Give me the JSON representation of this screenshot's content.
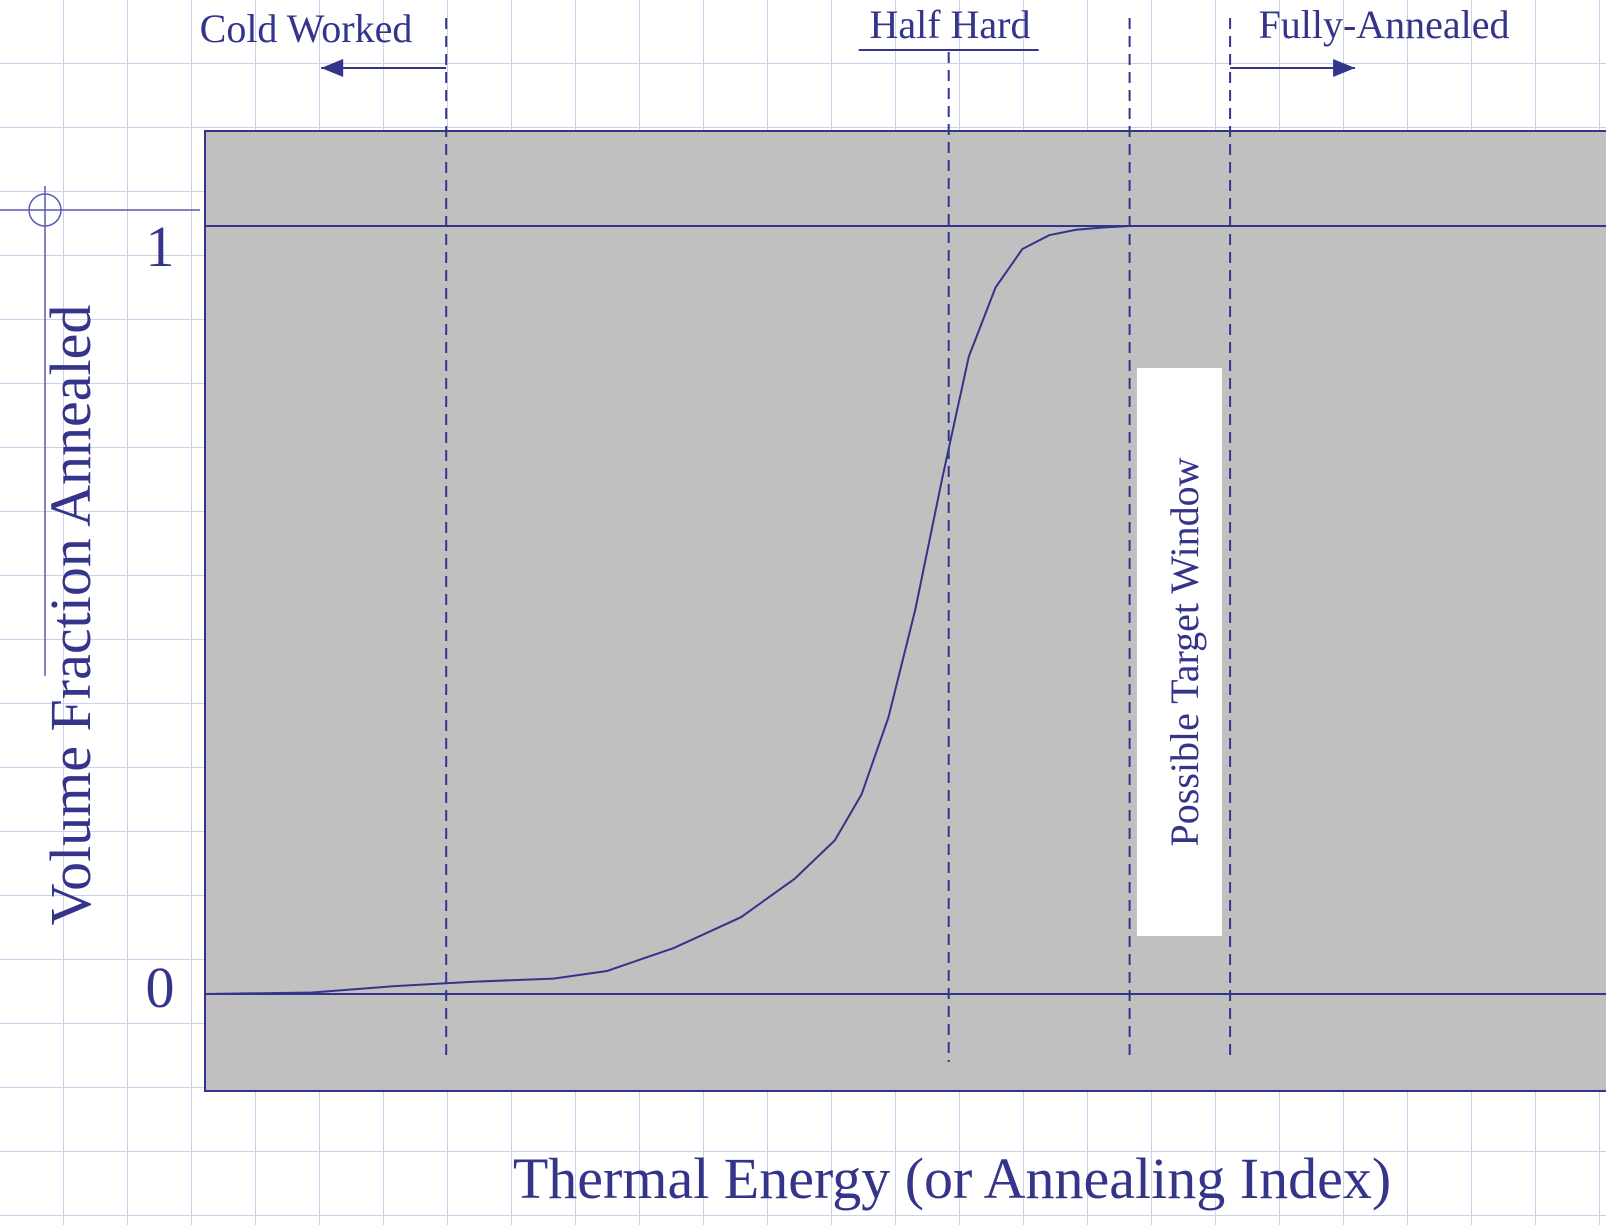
{
  "chart_data": {
    "type": "line",
    "title": "",
    "xlabel": "Thermal Energy (or Annealing Index)",
    "ylabel": "Volume Fraction Annealed",
    "y_ticks": [
      "0",
      "1"
    ],
    "ylim": [
      -0.15,
      1.15
    ],
    "xlim": [
      0,
      1
    ],
    "grid": false,
    "series": [
      {
        "x": [
          0.0,
          0.08,
          0.14,
          0.2,
          0.26,
          0.3,
          0.35,
          0.4,
          0.44,
          0.47,
          0.49,
          0.51,
          0.53,
          0.55,
          0.57,
          0.59,
          0.61,
          0.63,
          0.65,
          0.67,
          0.69,
          0.71,
          0.74,
          0.77,
          0.8,
          0.84,
          0.88,
          0.93,
          0.97,
          1.0
        ],
        "y": [
          0.0,
          0.002,
          0.01,
          0.016,
          0.02,
          0.03,
          0.06,
          0.1,
          0.15,
          0.2,
          0.26,
          0.36,
          0.5,
          0.67,
          0.83,
          0.92,
          0.97,
          0.988,
          0.995,
          0.998,
          1.0,
          1.0,
          1.0,
          1.0,
          1.0,
          1.0,
          1.0,
          1.0,
          1.0,
          1.0
        ]
      }
    ],
    "markers": [
      {
        "label": "Cold Worked",
        "x": 0.18,
        "arrow": "left"
      },
      {
        "label": "Half Hard",
        "x": 0.555,
        "arrow": "none"
      },
      {
        "label": "",
        "x": 0.69,
        "arrow": "none"
      },
      {
        "label": "Fully-Annealed",
        "x": 0.765,
        "arrow": "right"
      }
    ],
    "annotations": [
      "Possible Target Window"
    ]
  },
  "colors": {
    "plot_bg": "#c0c0c0",
    "ink": "#34348a",
    "grid": "#c9d2ea",
    "window_box": "#ffffff"
  }
}
